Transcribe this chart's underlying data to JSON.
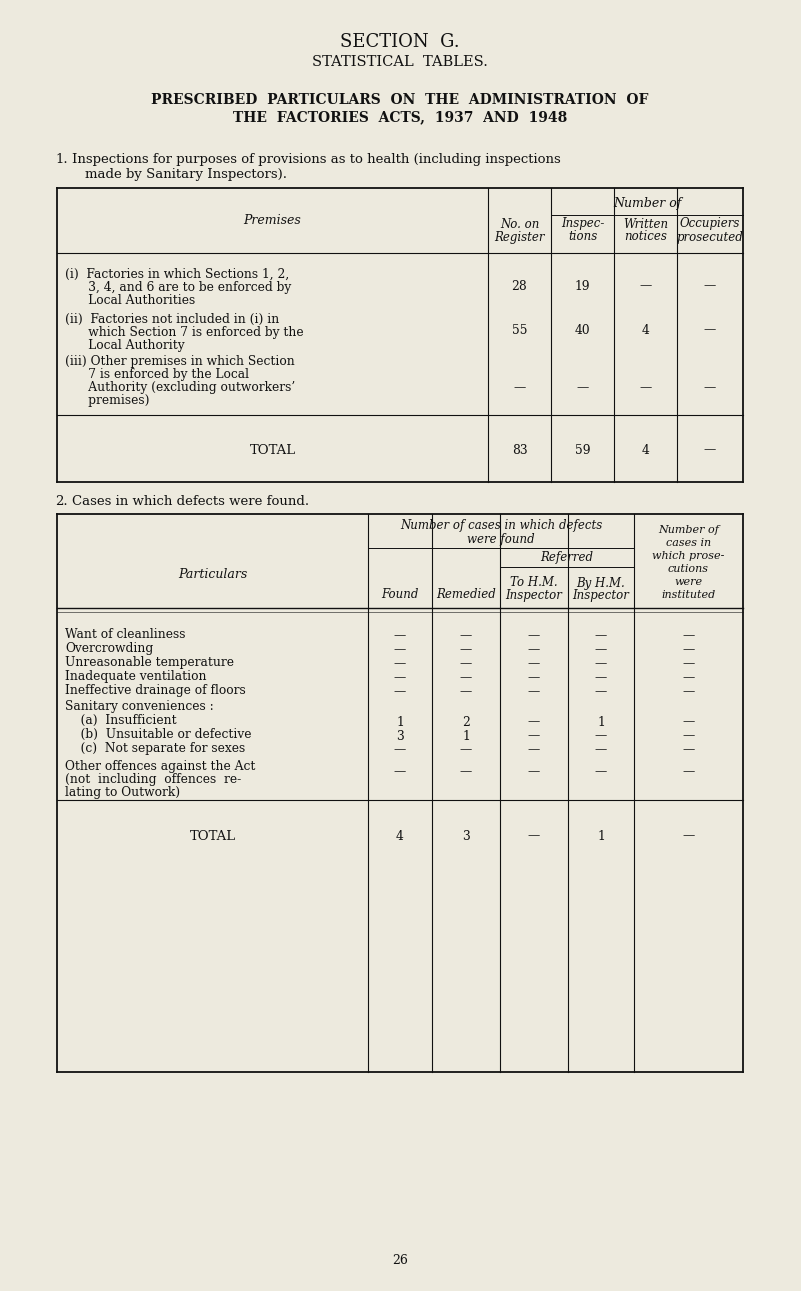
{
  "bg_color": "#edeade",
  "text_color": "#1a1a1a",
  "page_number": "26",
  "section_title": "SECTION  G.",
  "subtitle": "STATISTICAL  TABLES.",
  "main_title_line1": "PRESCRIBED  PARTICULARS  ON  THE  ADMINISTRATION  OF",
  "main_title_line2": "THE  FACTORIES  ACTS,  1937  AND  1948",
  "t1_rows_i": [
    "(i)  Factories in which Sections 1, 2,",
    "      3, 4, and 6 are to be enforced by",
    "      Local Authorities"
  ],
  "t1_rows_ii": [
    "(ii)  Factories not included in (i) in",
    "      which Section 7 is enforced by the",
    "      Local Authority"
  ],
  "t1_rows_iii": [
    "(iii) Other premises in which Section",
    "      7 is enforced by the Local",
    "      Authority (excluding outworkers’",
    "      premises)"
  ],
  "t1_vals_i": [
    "28",
    "19",
    "—",
    "—"
  ],
  "t1_vals_ii": [
    "55",
    "40",
    "4",
    "—"
  ],
  "t1_vals_iii": [
    "—",
    "—",
    "—",
    "—"
  ],
  "t1_total": [
    "83",
    "59",
    "4",
    "—"
  ],
  "t2_row_labels": [
    "Want of cleanliness",
    "Overcrowding",
    "Unreasonable temperature",
    "Inadequate ventilation",
    "Ineffective drainage of floors",
    "Sanitary conveniences :",
    "    (a)  Insufficient",
    "    (b)  Unsuitable or defective",
    "    (c)  Not separate for sexes",
    "Other offences against the Act\n(not  including  offences  re-\nlating to Outwork)"
  ],
  "t2_row_vals": [
    [
      "—",
      "—",
      "—",
      "—",
      "—"
    ],
    [
      "—",
      "—",
      "—",
      "—",
      "—"
    ],
    [
      "—",
      "—",
      "—",
      "—",
      "—"
    ],
    [
      "—",
      "—",
      "—",
      "—",
      "—"
    ],
    [
      "—",
      "—",
      "—",
      "—",
      "—"
    ],
    [
      "",
      "",
      "",
      "",
      ""
    ],
    [
      "1",
      "2",
      "—",
      "1",
      "—"
    ],
    [
      "3",
      "1",
      "—",
      "—",
      "—"
    ],
    [
      "—",
      "—",
      "—",
      "—",
      "—"
    ],
    [
      "—",
      "—",
      "—",
      "—",
      "—"
    ]
  ],
  "t2_total": [
    "4",
    "3",
    "—",
    "1",
    "—"
  ]
}
